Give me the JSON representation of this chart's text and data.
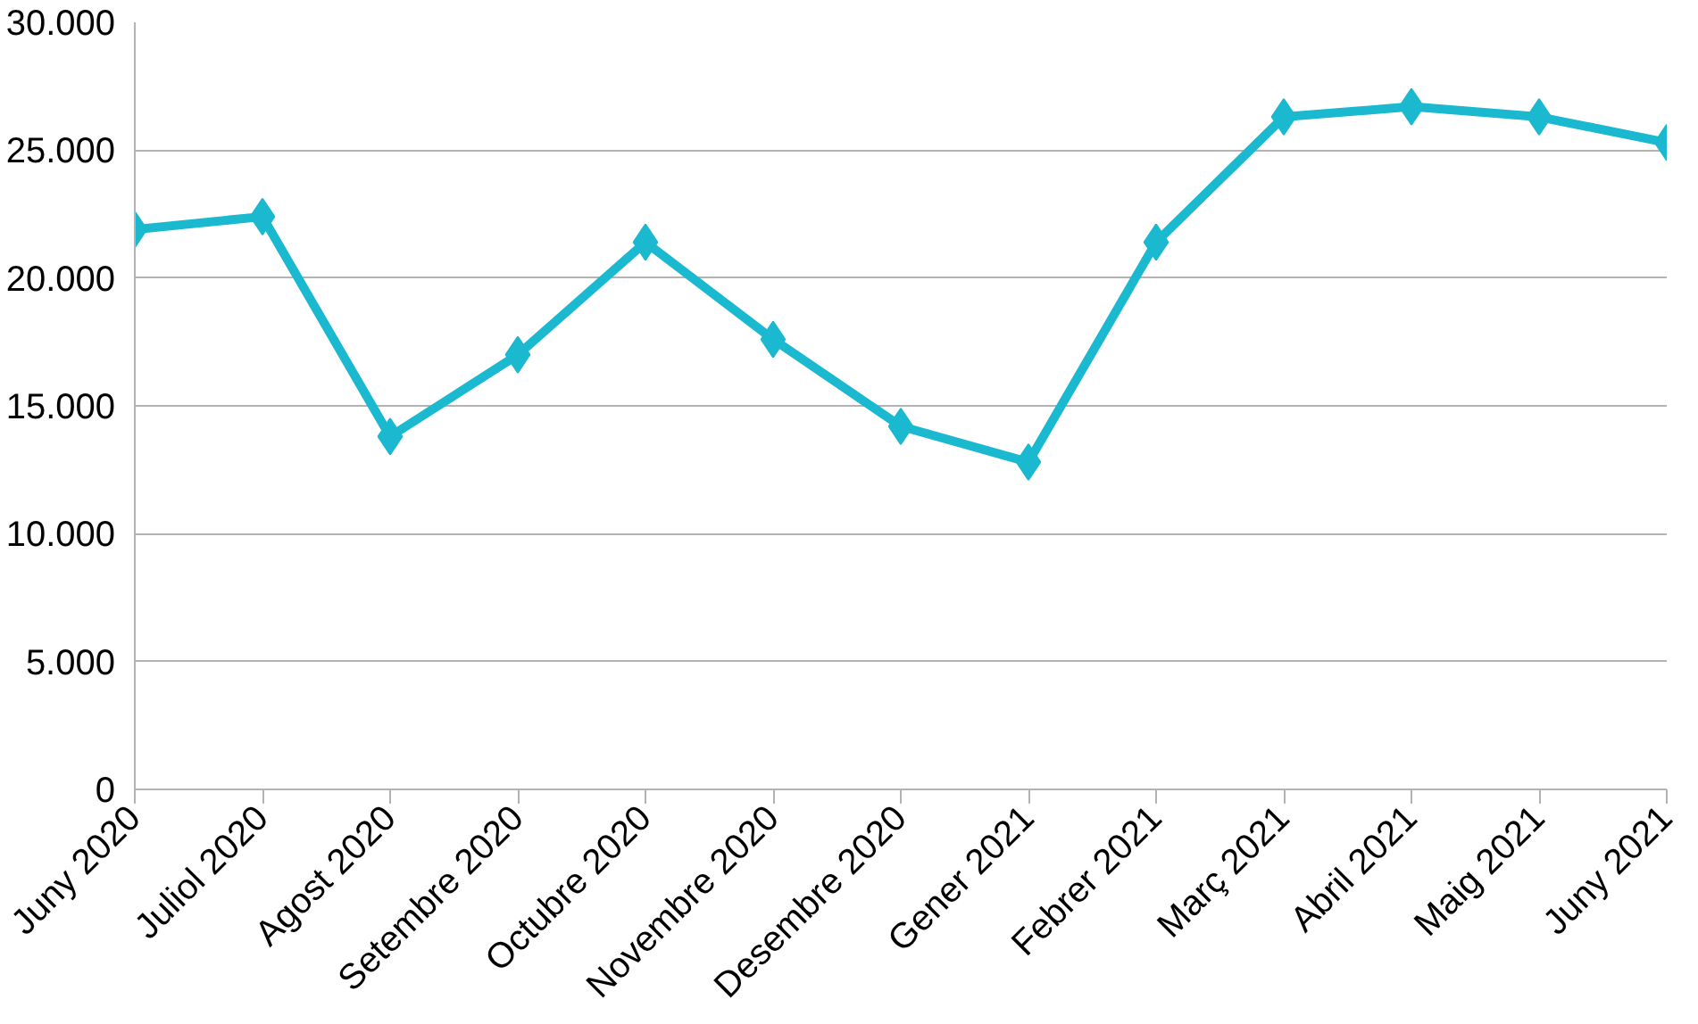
{
  "chart_data": {
    "type": "line",
    "categories": [
      "Juny 2020",
      "Juliol 2020",
      "Agost 2020",
      "Setembre 2020",
      "Octubre 2020",
      "Novembre 2020",
      "Desembre 2020",
      "Gener 2021",
      "Febrer 2021",
      "Març 2021",
      "Abril 2021",
      "Maig 2021",
      "Juny 2021"
    ],
    "series": [
      {
        "color": "#1ab9d0",
        "values": [
          21900,
          22400,
          13800,
          17000,
          21400,
          17600,
          14200,
          12800,
          21400,
          26300,
          26700,
          26300,
          25300
        ]
      }
    ],
    "ylim": [
      0,
      30000
    ],
    "yticks": [
      {
        "value": 0,
        "label": "0"
      },
      {
        "value": 5000,
        "label": "5.000"
      },
      {
        "value": 10000,
        "label": "10.000"
      },
      {
        "value": 15000,
        "label": "15.000"
      },
      {
        "value": 20000,
        "label": "20.000"
      },
      {
        "value": 25000,
        "label": "25.000"
      },
      {
        "value": 30000,
        "label": "30.000"
      }
    ],
    "grid": "y",
    "marker": "diamond",
    "line_style": "solid"
  }
}
